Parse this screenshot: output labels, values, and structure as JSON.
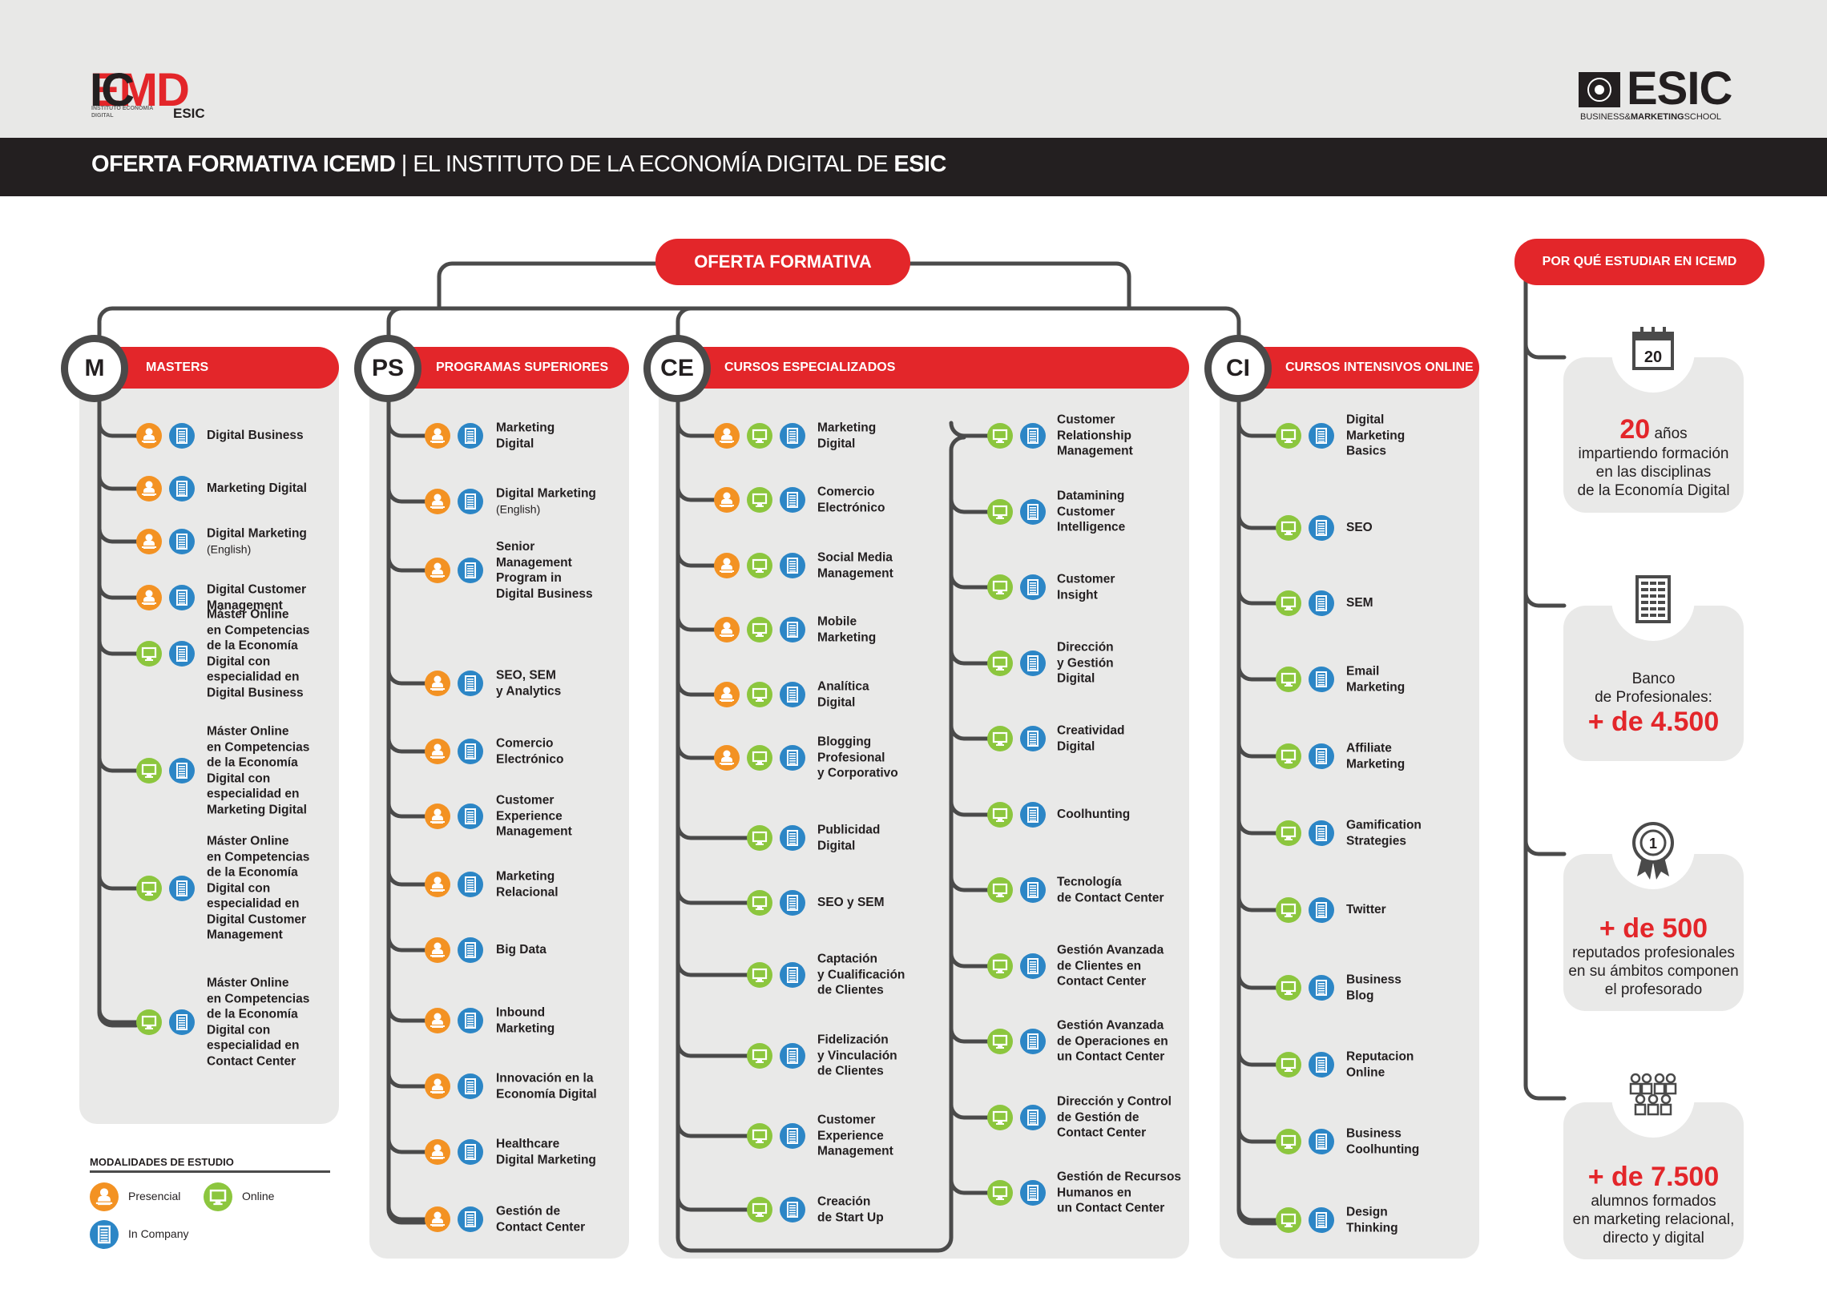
{
  "header": {
    "logo_left_word_a": "IC",
    "logo_left_word_b": "EMD",
    "logo_left_sub": "INSTITUTO ECONOMÍA DIGITAL",
    "logo_left_sub2": "ESIC",
    "logo_right_word": "ESIC",
    "logo_right_tag_a": "BUSINESS&",
    "logo_right_tag_b": "MARKETING",
    "logo_right_tag_c": "SCHOOL",
    "title_bold": "OFERTA FORMATIVA ICEMD",
    "title_sep": " | EL INSTITUTO DE LA ECONOMÍA DIGITAL DE ",
    "title_end": "ESIC"
  },
  "root_label": "OFERTA FORMATIVA",
  "why_label": "POR QUÉ ESTUDIAR EN ICEMD",
  "colors": {
    "red": "#e3262a",
    "orange": "#f39223",
    "green": "#8cc63e",
    "blue": "#2c86c6",
    "dark": "#231f20",
    "panel": "#e9e9e8"
  },
  "sections": [
    {
      "abbr": "M",
      "title": "MASTERS",
      "items": [
        {
          "label": "Digital Business",
          "modes": [
            "presencial",
            "company"
          ]
        },
        {
          "label": "Marketing Digital",
          "modes": [
            "presencial",
            "company"
          ]
        },
        {
          "label": "Digital Marketing",
          "note": "(English)",
          "modes": [
            "presencial",
            "company"
          ]
        },
        {
          "label": "Digital Customer\nManagement",
          "modes": [
            "presencial",
            "company"
          ]
        },
        {
          "label": "Máster Online\nen Competencias\nde la Economía\nDigital con\nespecialidad en\nDigital Business",
          "modes": [
            "online",
            "company"
          ]
        },
        {
          "label": "Máster Online\nen Competencias\nde la Economía\nDigital con\nespecialidad en\nMarketing Digital",
          "modes": [
            "online",
            "company"
          ]
        },
        {
          "label": "Máster Online\nen Competencias\nde la Economía\nDigital con\nespecialidad en\nDigital Customer\nManagement",
          "modes": [
            "online",
            "company"
          ]
        },
        {
          "label": "Máster Online\nen Competencias\nde la Economía\nDigital con\nespecialidad en\nContact Center",
          "modes": [
            "online",
            "company"
          ]
        }
      ]
    },
    {
      "abbr": "PS",
      "title": "PROGRAMAS SUPERIORES",
      "items": [
        {
          "label": "Marketing\nDigital",
          "modes": [
            "presencial",
            "company"
          ]
        },
        {
          "label": "Digital Marketing",
          "note": "(English)",
          "modes": [
            "presencial",
            "company"
          ]
        },
        {
          "label": "Senior\nManagement\nProgram in\nDigital Business",
          "modes": [
            "presencial",
            "company"
          ]
        },
        {
          "label": "SEO, SEM\ny Analytics",
          "modes": [
            "presencial",
            "company"
          ]
        },
        {
          "label": "Comercio\nElectrónico",
          "modes": [
            "presencial",
            "company"
          ]
        },
        {
          "label": "Customer\nExperience\nManagement",
          "modes": [
            "presencial",
            "company"
          ]
        },
        {
          "label": "Marketing\nRelacional",
          "modes": [
            "presencial",
            "company"
          ]
        },
        {
          "label": "Big Data",
          "modes": [
            "presencial",
            "company"
          ]
        },
        {
          "label": "Inbound\nMarketing",
          "modes": [
            "presencial",
            "company"
          ]
        },
        {
          "label": "Innovación en la\nEconomía Digital",
          "modes": [
            "presencial",
            "company"
          ]
        },
        {
          "label": "Healthcare\nDigital Marketing",
          "modes": [
            "presencial",
            "company"
          ]
        },
        {
          "label": "Gestión de\nContact Center",
          "modes": [
            "presencial",
            "company"
          ]
        }
      ]
    },
    {
      "abbr": "CE",
      "title": "CURSOS ESPECIALIZADOS",
      "items_left": [
        {
          "label": "Marketing\nDigital",
          "modes": [
            "presencial",
            "online",
            "company"
          ]
        },
        {
          "label": "Comercio\nElectrónico",
          "modes": [
            "presencial",
            "online",
            "company"
          ]
        },
        {
          "label": "Social Media\nManagement",
          "modes": [
            "presencial",
            "online",
            "company"
          ]
        },
        {
          "label": "Mobile\nMarketing",
          "modes": [
            "presencial",
            "online",
            "company"
          ]
        },
        {
          "label": "Analítica\nDigital",
          "modes": [
            "presencial",
            "online",
            "company"
          ]
        },
        {
          "label": "Blogging\nProfesional\ny Corporativo",
          "modes": [
            "presencial",
            "online",
            "company"
          ]
        },
        {
          "label": "Publicidad\nDigital",
          "modes": [
            "online",
            "company"
          ]
        },
        {
          "label": "SEO y SEM",
          "modes": [
            "online",
            "company"
          ]
        },
        {
          "label": "Captación\ny Cualificación\nde Clientes",
          "modes": [
            "online",
            "company"
          ]
        },
        {
          "label": "Fidelización\ny Vinculación\nde Clientes",
          "modes": [
            "online",
            "company"
          ]
        },
        {
          "label": "Customer\nExperience\nManagement",
          "modes": [
            "online",
            "company"
          ]
        },
        {
          "label": "Creación\nde Start Up",
          "modes": [
            "online",
            "company"
          ]
        }
      ],
      "items_right": [
        {
          "label": "Customer\nRelationship\nManagement",
          "modes": [
            "online",
            "company"
          ]
        },
        {
          "label": "Datamining\nCustomer\nIntelligence",
          "modes": [
            "online",
            "company"
          ]
        },
        {
          "label": "Customer\nInsight",
          "modes": [
            "online",
            "company"
          ]
        },
        {
          "label": "Dirección\ny Gestión\nDigital",
          "modes": [
            "online",
            "company"
          ]
        },
        {
          "label": "Creatividad\nDigital",
          "modes": [
            "online",
            "company"
          ]
        },
        {
          "label": "Coolhunting",
          "modes": [
            "online",
            "company"
          ]
        },
        {
          "label": "Tecnología\nde Contact Center",
          "modes": [
            "online",
            "company"
          ]
        },
        {
          "label": "Gestión Avanzada\nde Clientes en\nContact Center",
          "modes": [
            "online",
            "company"
          ]
        },
        {
          "label": "Gestión Avanzada\nde Operaciones en\nun Contact Center",
          "modes": [
            "online",
            "company"
          ]
        },
        {
          "label": "Dirección y Control\nde Gestión de\nContact Center",
          "modes": [
            "online",
            "company"
          ]
        },
        {
          "label": "Gestión de Recursos\nHumanos en\nun Contact Center",
          "modes": [
            "online",
            "company"
          ]
        }
      ]
    },
    {
      "abbr": "CI",
      "title": "CURSOS INTENSIVOS ONLINE",
      "items": [
        {
          "label": "Digital\nMarketing\nBasics",
          "modes": [
            "online",
            "company"
          ]
        },
        {
          "label": "SEO",
          "modes": [
            "online",
            "company"
          ]
        },
        {
          "label": "SEM",
          "modes": [
            "online",
            "company"
          ]
        },
        {
          "label": "Email\nMarketing",
          "modes": [
            "online",
            "company"
          ]
        },
        {
          "label": "Affiliate\nMarketing",
          "modes": [
            "online",
            "company"
          ]
        },
        {
          "label": "Gamification\nStrategies",
          "modes": [
            "online",
            "company"
          ]
        },
        {
          "label": "Twitter",
          "modes": [
            "online",
            "company"
          ]
        },
        {
          "label": "Business\nBlog",
          "modes": [
            "online",
            "company"
          ]
        },
        {
          "label": "Reputacion\nOnline",
          "modes": [
            "online",
            "company"
          ]
        },
        {
          "label": "Business\nCoolhunting",
          "modes": [
            "online",
            "company"
          ]
        },
        {
          "label": "Design\nThinking",
          "modes": [
            "online",
            "company"
          ]
        }
      ]
    }
  ],
  "why": [
    {
      "icon": "calendar-icon",
      "badge_text": "20",
      "big": "20",
      "big_suffix": " años",
      "text": "impartiendo formación\nen las disciplinas\nde la Economía Digital"
    },
    {
      "icon": "building-icon",
      "text_top": "Banco\nde Profesionales:",
      "big": "+ de 4.500"
    },
    {
      "icon": "medal-icon",
      "badge_text": "1",
      "big": "+ de 500",
      "text": "reputados profesionales\nen su ámbitos componen\nel profesorado"
    },
    {
      "icon": "people-icon",
      "big": "+ de 7.500",
      "text": "alumnos formados\nen marketing relacional,\ndirecto y digital"
    }
  ],
  "legend": {
    "title": "MODALIDADES DE ESTUDIO",
    "presencial": "Presencial",
    "online": "Online",
    "company": "In Company"
  }
}
